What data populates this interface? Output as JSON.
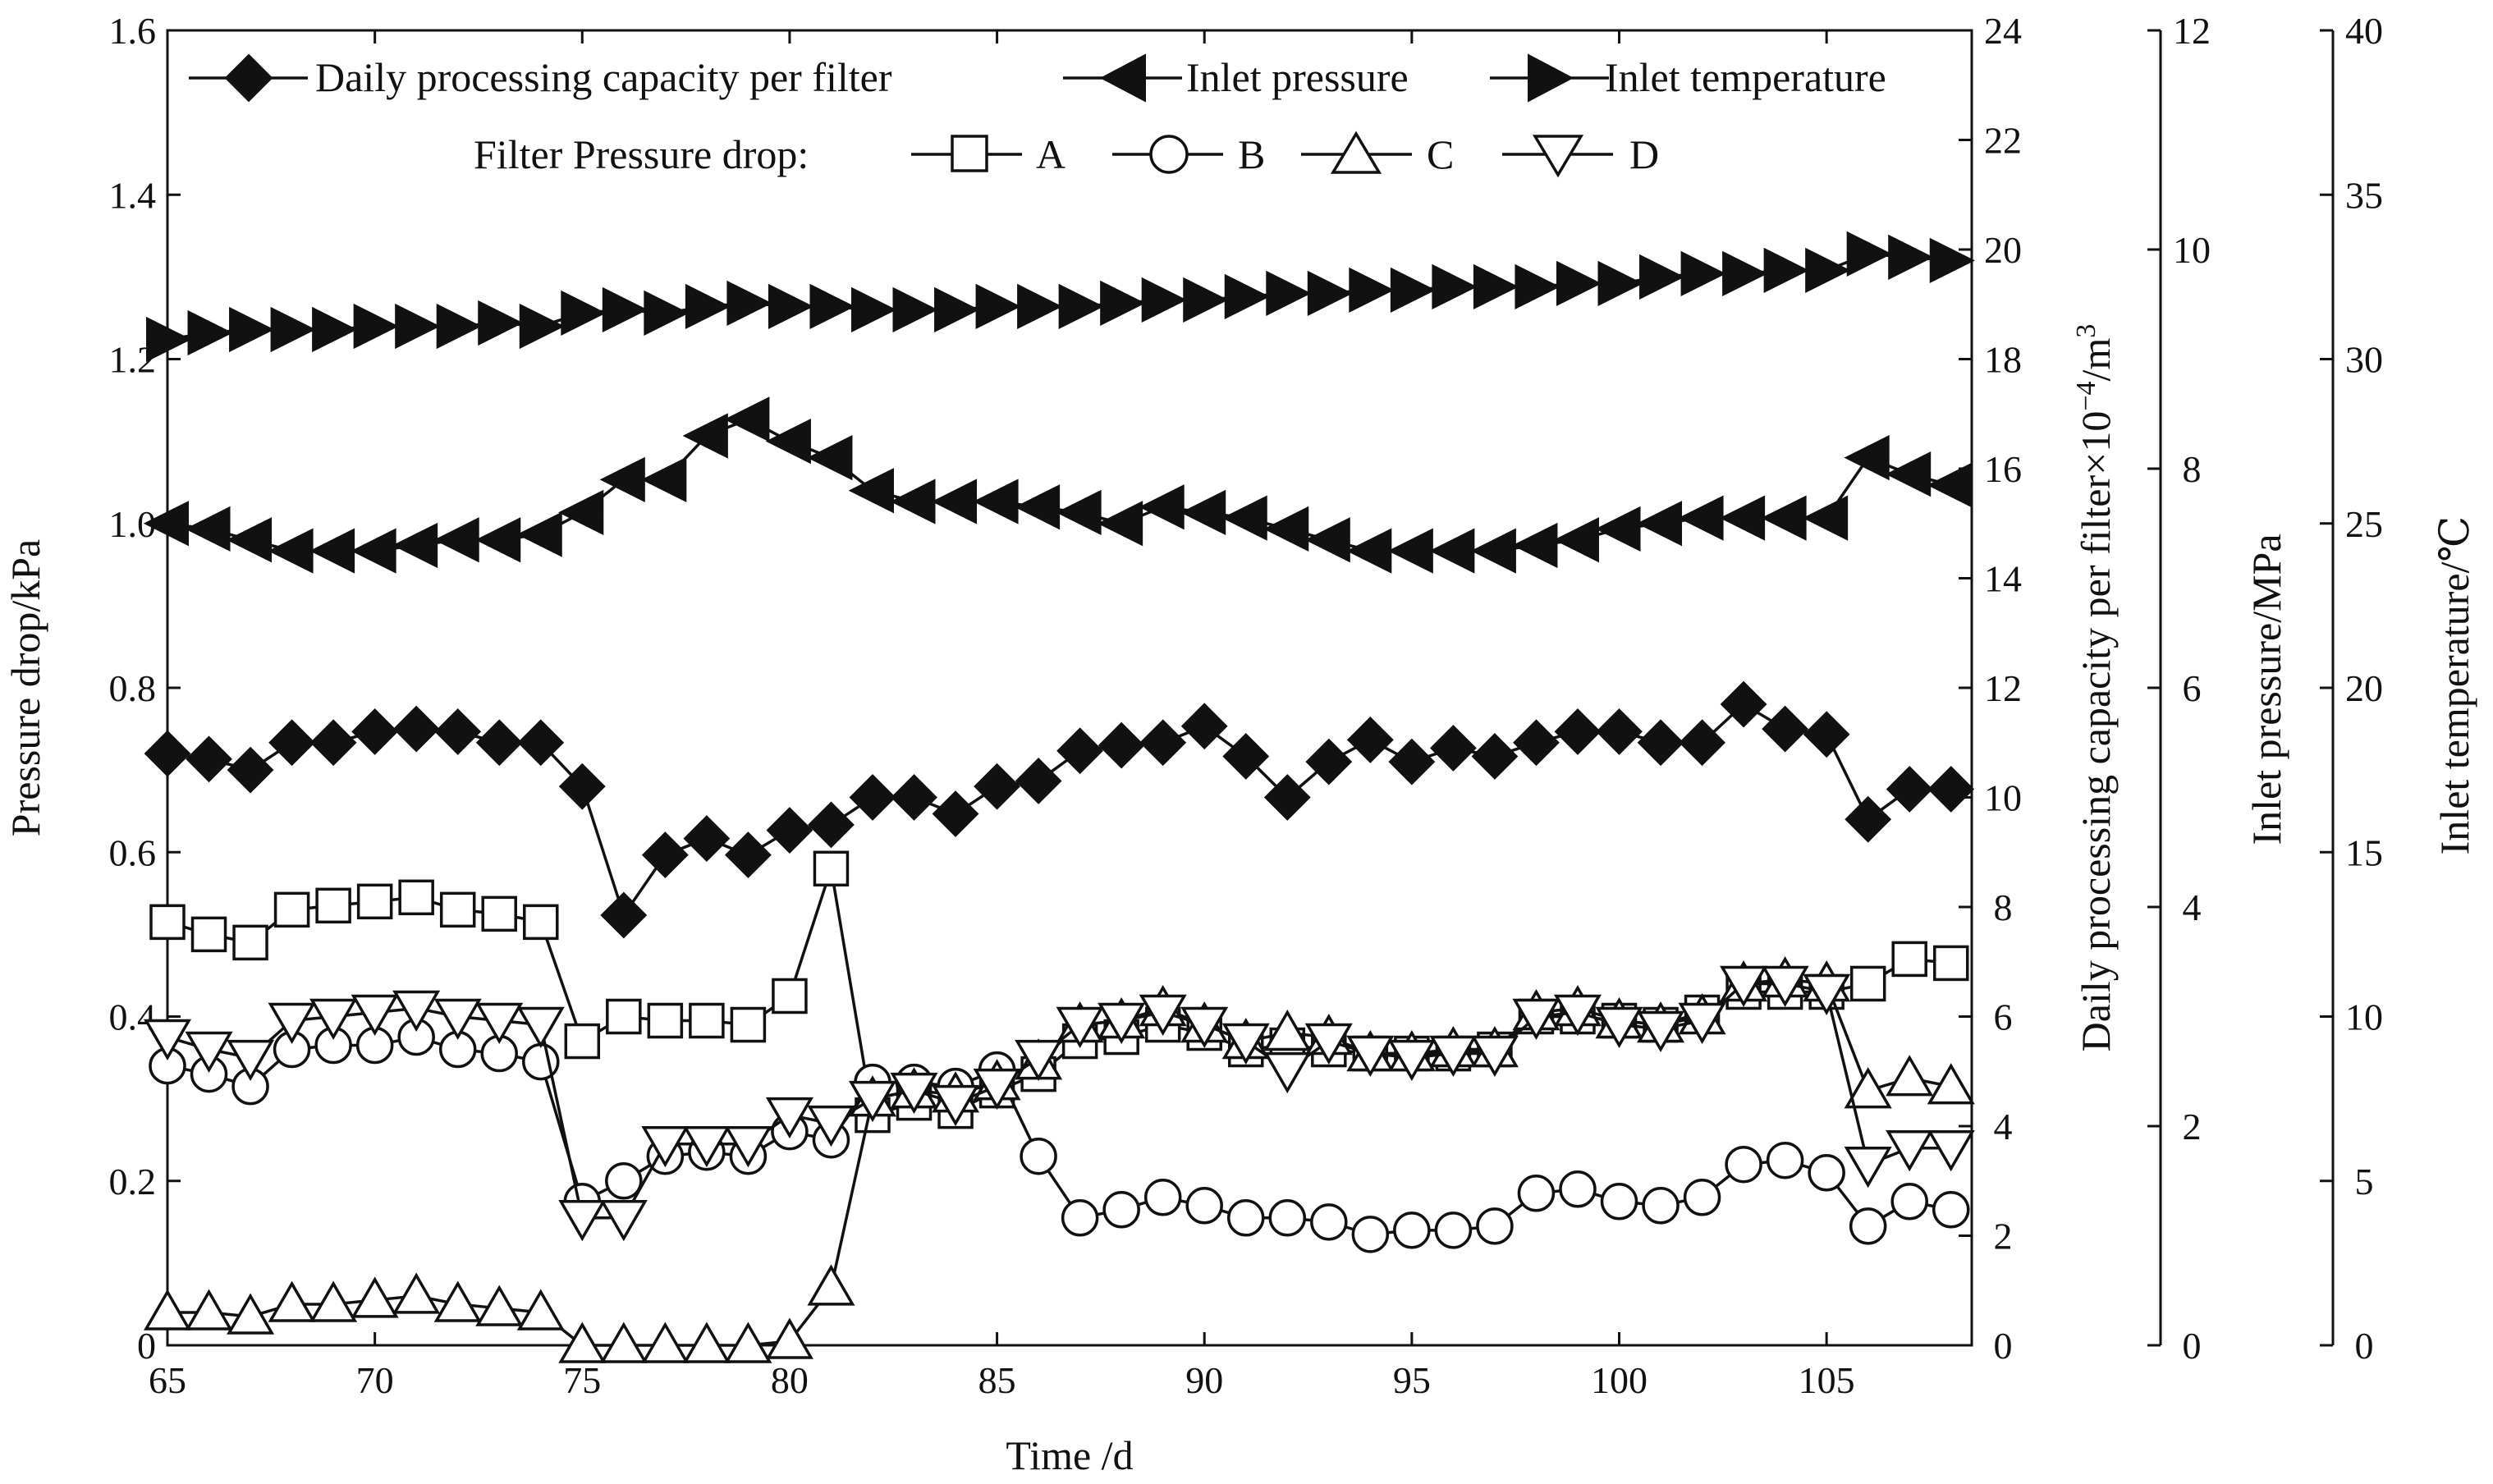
{
  "chart_data": {
    "type": "line",
    "x": [
      65,
      66,
      67,
      68,
      69,
      70,
      71,
      72,
      73,
      74,
      75,
      76,
      77,
      78,
      79,
      80,
      81,
      82,
      83,
      84,
      85,
      86,
      87,
      88,
      89,
      90,
      91,
      92,
      93,
      94,
      95,
      96,
      97,
      98,
      99,
      100,
      101,
      102,
      103,
      104,
      105,
      106,
      107,
      108
    ],
    "xlabel": "Time /d",
    "xlim": [
      65,
      108.5
    ],
    "x_ticks": [
      65,
      70,
      75,
      80,
      85,
      90,
      95,
      100,
      105
    ],
    "axes": {
      "left": {
        "label": "Pressure drop/kPa",
        "lim": [
          0,
          1.6
        ],
        "ticks": [
          "0",
          "0.2",
          "0.4",
          "0.6",
          "0.8",
          "1.0",
          "1.2",
          "1.4",
          "1.6"
        ]
      },
      "right1": {
        "label_main": "Daily processing capacity per filter×10",
        "label_sup": "−4",
        "label_tail": "/m",
        "label_sup2": "3",
        "lim": [
          0,
          24
        ],
        "ticks": [
          "0",
          "2",
          "4",
          "6",
          "8",
          "10",
          "12",
          "14",
          "16",
          "18",
          "20",
          "22",
          "24"
        ]
      },
      "right2": {
        "label": "Inlet pressure/MPa",
        "lim": [
          0,
          12
        ],
        "ticks": [
          "0",
          "2",
          "4",
          "6",
          "8",
          "10",
          "12"
        ]
      },
      "right3": {
        "label": "Inlet temperature/℃",
        "lim": [
          0,
          40
        ],
        "ticks": [
          "0",
          "5",
          "10",
          "15",
          "20",
          "25",
          "30",
          "35",
          "40"
        ]
      }
    },
    "series": [
      {
        "name": "Daily processing capacity per filter",
        "axis": "right1",
        "marker": "diamond",
        "values": [
          10.8,
          10.7,
          10.5,
          11.0,
          11.0,
          11.2,
          11.25,
          11.2,
          11.0,
          11.0,
          10.2,
          7.85,
          8.95,
          9.25,
          8.95,
          9.4,
          9.5,
          10.0,
          10.0,
          9.7,
          10.2,
          10.3,
          10.85,
          10.95,
          11.0,
          11.3,
          10.75,
          10.0,
          10.65,
          11.05,
          10.65,
          10.9,
          10.75,
          11.0,
          11.2,
          11.2,
          11.0,
          11.0,
          11.7,
          11.25,
          11.15,
          9.6,
          10.15,
          10.15
        ]
      },
      {
        "name": "Inlet pressure",
        "axis": "right2",
        "marker": "left-triangle",
        "values": [
          7.5,
          7.45,
          7.35,
          7.25,
          7.25,
          7.25,
          7.3,
          7.35,
          7.35,
          7.4,
          7.6,
          7.9,
          7.9,
          8.3,
          8.45,
          8.25,
          8.1,
          7.8,
          7.7,
          7.7,
          7.7,
          7.65,
          7.6,
          7.5,
          7.65,
          7.6,
          7.55,
          7.45,
          7.35,
          7.25,
          7.25,
          7.25,
          7.25,
          7.3,
          7.35,
          7.45,
          7.5,
          7.55,
          7.55,
          7.55,
          7.55,
          8.1,
          7.95,
          7.85
        ]
      },
      {
        "name": "Inlet temperature",
        "axis": "right3",
        "marker": "right-triangle",
        "values": [
          30.6,
          30.8,
          30.9,
          30.9,
          30.9,
          31.0,
          31.0,
          31.0,
          31.1,
          31.0,
          31.4,
          31.5,
          31.4,
          31.6,
          31.7,
          31.6,
          31.6,
          31.5,
          31.5,
          31.5,
          31.6,
          31.6,
          31.6,
          31.7,
          31.8,
          31.8,
          31.9,
          32.0,
          32.0,
          32.1,
          32.1,
          32.2,
          32.2,
          32.2,
          32.3,
          32.3,
          32.5,
          32.6,
          32.6,
          32.7,
          32.7,
          33.2,
          33.1,
          33.0
        ]
      },
      {
        "name": "A",
        "axis": "left",
        "marker": "square",
        "values": [
          0.515,
          0.5,
          0.49,
          0.53,
          0.535,
          0.54,
          0.545,
          0.53,
          0.525,
          0.515,
          0.37,
          0.4,
          0.395,
          0.395,
          0.39,
          0.425,
          0.58,
          0.28,
          0.295,
          0.285,
          0.31,
          0.33,
          0.37,
          0.375,
          0.39,
          0.38,
          0.36,
          0.365,
          0.36,
          0.355,
          0.355,
          0.355,
          0.36,
          0.4,
          0.4,
          0.395,
          0.39,
          0.405,
          0.43,
          0.43,
          0.43,
          0.44,
          0.47,
          0.465
        ]
      },
      {
        "name": "B",
        "axis": "left",
        "marker": "circle",
        "values": [
          0.34,
          0.33,
          0.315,
          0.36,
          0.365,
          0.365,
          0.375,
          0.36,
          0.355,
          0.345,
          0.175,
          0.2,
          0.23,
          0.235,
          0.23,
          0.26,
          0.25,
          0.32,
          0.32,
          0.315,
          0.335,
          0.23,
          0.155,
          0.165,
          0.18,
          0.17,
          0.155,
          0.155,
          0.15,
          0.135,
          0.14,
          0.14,
          0.145,
          0.185,
          0.19,
          0.175,
          0.17,
          0.18,
          0.22,
          0.225,
          0.21,
          0.145,
          0.175,
          0.165
        ]
      },
      {
        "name": "C",
        "axis": "left",
        "marker": "up-triangle",
        "values": [
          0.04,
          0.04,
          0.035,
          0.05,
          0.05,
          0.055,
          0.06,
          0.05,
          0.045,
          0.04,
          0.0,
          0.0,
          0.0,
          0.0,
          0.0,
          0.005,
          0.07,
          0.3,
          0.31,
          0.305,
          0.32,
          0.345,
          0.39,
          0.395,
          0.41,
          0.39,
          0.37,
          0.38,
          0.375,
          0.355,
          0.355,
          0.36,
          0.36,
          0.405,
          0.41,
          0.395,
          0.39,
          0.4,
          0.44,
          0.445,
          0.44,
          0.31,
          0.325,
          0.315
        ]
      },
      {
        "name": "D",
        "axis": "left",
        "marker": "down-triangle",
        "values": [
          0.375,
          0.36,
          0.35,
          0.395,
          0.4,
          0.405,
          0.41,
          0.4,
          0.395,
          0.39,
          0.155,
          0.155,
          0.245,
          0.245,
          0.245,
          0.28,
          0.27,
          0.3,
          0.31,
          0.295,
          0.315,
          0.35,
          0.39,
          0.395,
          0.405,
          0.39,
          0.37,
          0.335,
          0.37,
          0.355,
          0.35,
          0.355,
          0.355,
          0.4,
          0.405,
          0.39,
          0.385,
          0.395,
          0.44,
          0.44,
          0.43,
          0.22,
          0.24,
          0.24
        ]
      }
    ],
    "legend": {
      "row1": [
        "Daily processing capacity per filter",
        "Inlet pressure",
        "Inlet temperature"
      ],
      "row2_prefix": "Filter Pressure drop:",
      "row2": [
        "A",
        "B",
        "C",
        "D"
      ],
      "position": "top"
    }
  }
}
